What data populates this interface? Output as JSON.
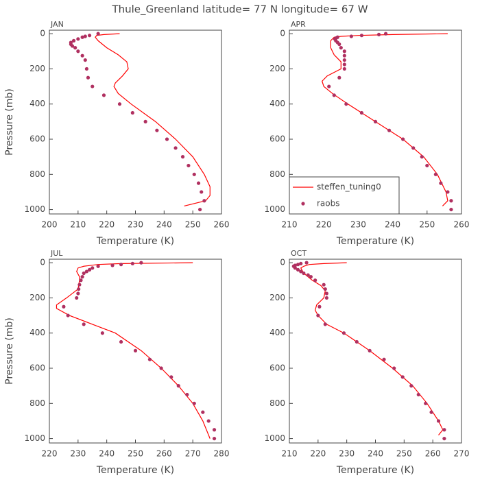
{
  "title": "Thule_Greenland  latitude= 77 N longitude= 67 W",
  "chart_data": [
    {
      "type": "line",
      "title": "JAN",
      "xlabel": "Temperature (K)",
      "ylabel": "Pressure (mb)",
      "xlim": [
        200,
        260
      ],
      "xticks": [
        200,
        210,
        220,
        230,
        240,
        250,
        260
      ],
      "ylim": [
        1025,
        -20
      ],
      "yticks": [
        0,
        200,
        400,
        600,
        800,
        1000
      ],
      "series": [
        {
          "style": "line",
          "color": "#ff0000",
          "x": [
            224.5,
            219,
            216.5,
            216,
            217,
            220,
            224,
            227,
            227.5,
            225.5,
            223,
            222.5,
            224,
            228.5,
            237,
            244,
            250,
            254,
            256,
            256,
            254.5,
            247
          ],
          "values": [
            0,
            5,
            10,
            20,
            40,
            80,
            120,
            160,
            200,
            240,
            280,
            300,
            340,
            400,
            500,
            600,
            700,
            800,
            870,
            920,
            950,
            980
          ]
        },
        {
          "style": "points",
          "color": "#b03060",
          "x": [
            217,
            214,
            212.5,
            211.5,
            210,
            208.5,
            207.5,
            207.5,
            208,
            209,
            210,
            211.5,
            212.5,
            213,
            213.5,
            215,
            219,
            224.5,
            229,
            233.5,
            237.5,
            241,
            244,
            246.5,
            248.5,
            250.5,
            252,
            253,
            254,
            252.5
          ],
          "values": [
            0,
            10,
            15,
            20,
            30,
            40,
            50,
            60,
            70,
            80,
            100,
            125,
            150,
            200,
            250,
            300,
            350,
            400,
            450,
            500,
            550,
            600,
            650,
            700,
            750,
            800,
            850,
            900,
            950,
            1000
          ]
        }
      ]
    },
    {
      "type": "line",
      "title": "APR",
      "xlabel": "Temperature (K)",
      "xlim": [
        210,
        260
      ],
      "xticks": [
        210,
        220,
        230,
        240,
        250,
        260
      ],
      "ylim": [
        1025,
        -20
      ],
      "yticks": [
        0,
        200,
        400,
        600,
        800,
        1000
      ],
      "legend": "lower left",
      "series": [
        {
          "name": "steffen_tuning0",
          "style": "line",
          "color": "#ff0000",
          "x": [
            256,
            240,
            230,
            225,
            223,
            222,
            222,
            223,
            225,
            225,
            221,
            219.5,
            220,
            222.5,
            227,
            235,
            243,
            249,
            253,
            255.5,
            256,
            254.5
          ],
          "values": [
            0,
            5,
            10,
            15,
            20,
            40,
            80,
            120,
            160,
            200,
            240,
            270,
            300,
            340,
            400,
            500,
            600,
            700,
            800,
            900,
            950,
            980
          ]
        },
        {
          "name": "raobs",
          "style": "points",
          "color": "#b03060",
          "x": [
            238,
            236,
            231,
            228,
            224,
            223.5,
            223.2,
            223.5,
            224,
            224.5,
            225,
            226,
            226,
            226,
            226,
            226,
            224.5,
            221.5,
            223,
            226.5,
            231,
            235,
            239,
            243,
            246,
            248.5,
            250,
            252.5,
            254,
            256,
            257,
            257
          ],
          "values": [
            0,
            5,
            10,
            15,
            20,
            25,
            30,
            40,
            50,
            60,
            80,
            100,
            125,
            150,
            175,
            200,
            250,
            300,
            350,
            400,
            450,
            500,
            550,
            600,
            650,
            700,
            750,
            800,
            850,
            900,
            950,
            1000
          ]
        }
      ]
    },
    {
      "type": "line",
      "title": "JUL",
      "xlabel": "Temperature (K)",
      "ylabel": "Pressure (mb)",
      "xlim": [
        220,
        280
      ],
      "xticks": [
        220,
        230,
        240,
        250,
        260,
        270,
        280
      ],
      "ylim": [
        1025,
        -20
      ],
      "yticks": [
        0,
        200,
        400,
        600,
        800,
        1000
      ],
      "series": [
        {
          "style": "line",
          "color": "#ff0000",
          "x": [
            270,
            245,
            237,
            232,
            230,
            229.5,
            230.5,
            230.5,
            230,
            226,
            222.5,
            222.5,
            227,
            235,
            243,
            252,
            259,
            265,
            270,
            273.5,
            276
          ],
          "values": [
            0,
            5,
            10,
            20,
            30,
            50,
            80,
            100,
            150,
            200,
            240,
            260,
            300,
            350,
            400,
            500,
            600,
            700,
            800,
            900,
            1000
          ]
        },
        {
          "style": "points",
          "color": "#b03060",
          "x": [
            252,
            249,
            245,
            242,
            237,
            235,
            234,
            233,
            232,
            231.5,
            231,
            230.5,
            230.2,
            230,
            229.5,
            225,
            226.5,
            232,
            238.5,
            245,
            250,
            255,
            259,
            262.5,
            265,
            268,
            270.5,
            273.5,
            275.5,
            277.5,
            277.5
          ],
          "values": [
            0,
            5,
            10,
            15,
            20,
            30,
            40,
            50,
            60,
            80,
            100,
            125,
            150,
            175,
            200,
            250,
            300,
            350,
            400,
            450,
            500,
            550,
            600,
            650,
            700,
            750,
            800,
            850,
            900,
            950,
            1000
          ]
        }
      ]
    },
    {
      "type": "line",
      "title": "OCT",
      "xlabel": "Temperature (K)",
      "xlim": [
        210,
        270
      ],
      "xticks": [
        210,
        220,
        230,
        240,
        250,
        260,
        270
      ],
      "ylim": [
        1025,
        -20
      ],
      "yticks": [
        0,
        200,
        400,
        600,
        800,
        1000
      ],
      "series": [
        {
          "style": "line",
          "color": "#ff0000",
          "x": [
            230,
            222,
            217,
            215,
            214,
            215,
            218,
            221,
            222.5,
            222,
            219.5,
            219,
            220,
            223,
            229,
            238,
            246,
            253,
            258,
            262,
            263.5,
            262
          ],
          "values": [
            0,
            5,
            10,
            20,
            30,
            60,
            100,
            130,
            160,
            200,
            240,
            270,
            300,
            350,
            400,
            500,
            600,
            700,
            800,
            900,
            950,
            980
          ]
        },
        {
          "style": "points",
          "color": "#b03060",
          "x": [
            216,
            214,
            213,
            212,
            211.5,
            212,
            213,
            214,
            215,
            216.5,
            217.5,
            219,
            222,
            222.5,
            223,
            223,
            220.5,
            220,
            222.5,
            229,
            233.5,
            238,
            243,
            246.5,
            249.5,
            252.5,
            255,
            257.5,
            259.5,
            262,
            264,
            264
          ],
          "values": [
            0,
            5,
            10,
            15,
            20,
            30,
            40,
            50,
            60,
            70,
            80,
            100,
            125,
            150,
            175,
            200,
            250,
            300,
            350,
            400,
            450,
            500,
            550,
            600,
            650,
            700,
            750,
            800,
            850,
            900,
            950,
            1000
          ]
        }
      ]
    }
  ]
}
